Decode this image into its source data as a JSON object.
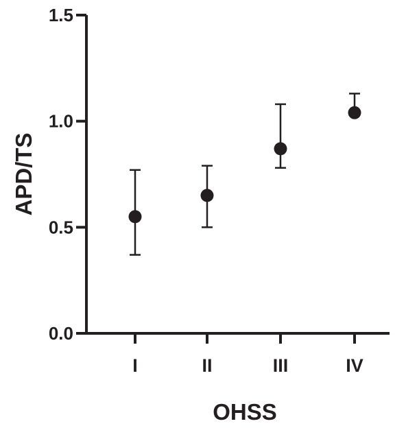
{
  "chart_data": {
    "type": "scatter",
    "title": "",
    "xlabel": "OHSS",
    "ylabel": "APD/TS",
    "categories": [
      "I",
      "II",
      "III",
      "IV"
    ],
    "ylim": [
      0.0,
      1.5
    ],
    "yticks": [
      "0.0",
      "0.5",
      "1.0",
      "1.5"
    ],
    "grid": false,
    "legend": "none",
    "series": [
      {
        "values": [
          0.55,
          0.65,
          0.87,
          1.04
        ],
        "error_low": [
          0.37,
          0.5,
          0.78,
          1.04
        ],
        "error_high": [
          0.77,
          0.79,
          1.08,
          1.13
        ]
      }
    ]
  },
  "colors": {
    "ink": "#231f20"
  }
}
